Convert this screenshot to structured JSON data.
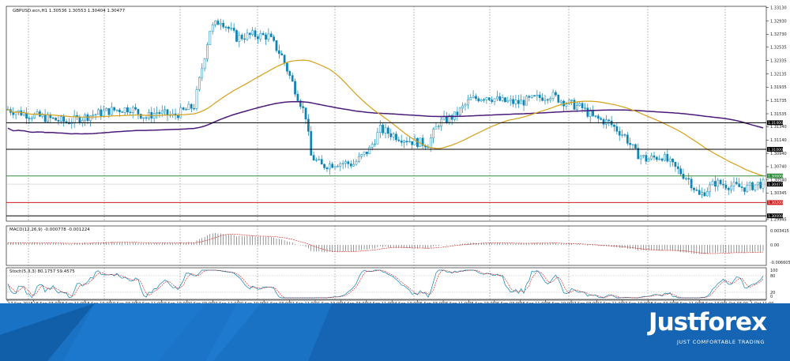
{
  "colors": {
    "bull": "#0a84b4",
    "bear": "#0a84b4",
    "ma_fast": "#d4a017",
    "ma_slow": "#4b1a7a",
    "support_green": "#2e8b3a",
    "support_red": "#d11a1a",
    "level_black": "#000000",
    "brand": "#1565b4"
  },
  "chart_data": {
    "type": "candlestick",
    "symbol_header": "GBPUSD.ecn,H1  1.30536 1.30553 1.30404 1.30477",
    "price_axis_ticks": [
      "1.33130",
      "1.32930",
      "1.32730",
      "1.32535",
      "1.32335",
      "1.32135",
      "1.31935",
      "1.31735",
      "1.31535",
      "1.31340",
      "1.31140",
      "1.30940",
      "1.30740",
      "1.30540",
      "1.30345",
      "1.29945"
    ],
    "price_range": [
      1.2992,
      1.3315
    ],
    "levels": [
      {
        "value": "1.31400",
        "color": "black"
      },
      {
        "value": "1.31000",
        "color": "black"
      },
      {
        "value": "1.30600",
        "color": "green"
      },
      {
        "value": "1.30200",
        "color": "red"
      },
      {
        "value": "1.30000",
        "color": "black"
      }
    ],
    "current_price": "1.30477",
    "time_labels": [
      "17 Sep 2018",
      "18 Sep 03:00",
      "18 Sep 11:00",
      "18 Sep 19:00",
      "19 Sep 03:00",
      "19 Sep 11:00",
      "19 Sep 19:00",
      "20 Sep 03:00",
      "20 Sep 11:00",
      "20 Sep 19:00",
      "21 Sep 03:00",
      "21 Sep 11:00",
      "21 Sep 19:00",
      "24 Sep 03:00",
      "24 Sep 11:00",
      "24 Sep 19:00",
      "25 Sep 03:00",
      "25 Sep 11:00",
      "25 Sep 19:00",
      "26 Sep 03:00",
      "26 Sep 11:00",
      "26 Sep 19:00",
      "27 Sep 03:00",
      "27 Sep 11:00",
      "27 Sep 19:00",
      "28 Sep 03:00",
      "28 Sep 11:00",
      "28 Sep 19:00",
      "1 Oct 03:00",
      "1 Oct 11:00"
    ],
    "close_path": [
      [
        0,
        1.316
      ],
      [
        8,
        1.3152
      ],
      [
        16,
        1.3146
      ],
      [
        22,
        1.3141
      ],
      [
        30,
        1.315
      ],
      [
        38,
        1.3158
      ],
      [
        46,
        1.3162
      ],
      [
        52,
        1.3148
      ],
      [
        56,
        1.3156
      ],
      [
        62,
        1.315
      ],
      [
        70,
        1.3165
      ],
      [
        76,
        1.328
      ],
      [
        80,
        1.3295
      ],
      [
        86,
        1.3268
      ],
      [
        92,
        1.3272
      ],
      [
        98,
        1.327
      ],
      [
        103,
        1.324
      ],
      [
        108,
        1.319
      ],
      [
        112,
        1.315
      ],
      [
        114,
        1.309
      ],
      [
        118,
        1.3075
      ],
      [
        124,
        1.308
      ],
      [
        130,
        1.3078
      ],
      [
        136,
        1.31
      ],
      [
        140,
        1.313
      ],
      [
        146,
        1.312
      ],
      [
        152,
        1.3112
      ],
      [
        158,
        1.3108
      ],
      [
        162,
        1.314
      ],
      [
        168,
        1.315
      ],
      [
        174,
        1.3175
      ],
      [
        180,
        1.318
      ],
      [
        186,
        1.3172
      ],
      [
        192,
        1.317
      ],
      [
        198,
        1.3176
      ],
      [
        204,
        1.3182
      ],
      [
        210,
        1.317
      ],
      [
        216,
        1.3162
      ],
      [
        220,
        1.3148
      ],
      [
        226,
        1.314
      ],
      [
        232,
        1.312
      ],
      [
        236,
        1.3095
      ],
      [
        240,
        1.3085
      ],
      [
        246,
        1.309
      ],
      [
        250,
        1.3075
      ],
      [
        256,
        1.3055
      ],
      [
        260,
        1.303
      ],
      [
        266,
        1.305
      ],
      [
        272,
        1.3045
      ],
      [
        278,
        1.3042
      ],
      [
        282,
        1.3048
      ]
    ],
    "macd": {
      "label": "MACD(12,26,9) -0.000778 -0.001224",
      "ticks": [
        "0.003415",
        "0.00",
        "-0.006605"
      ]
    },
    "stochastic": {
      "label": "Stoch(5,3,3) 80.1757 59.4575",
      "ticks": [
        "100",
        "80",
        "20",
        "0"
      ]
    }
  },
  "brand": {
    "name": "Justforex",
    "tagline": "JUST COMFORTABLE TRADING"
  }
}
